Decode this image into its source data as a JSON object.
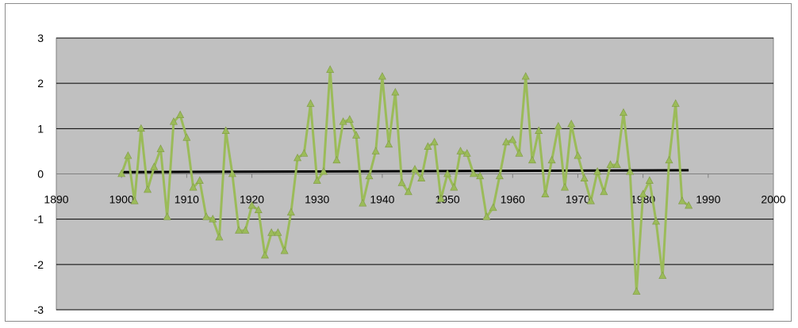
{
  "chart_data": {
    "type": "line",
    "title": "",
    "xlabel": "",
    "ylabel": "",
    "xlim": [
      1890,
      2000
    ],
    "ylim": [
      -3,
      3
    ],
    "x_ticks": [
      "1890",
      "1900",
      "1910",
      "1920",
      "1930",
      "1940",
      "1950",
      "1960",
      "1970",
      "1980",
      "1990",
      "2000"
    ],
    "y_ticks": [
      "3",
      "2",
      "1",
      "0",
      "-1",
      "-2",
      "-3"
    ],
    "grid": "horizontal",
    "legend": "none",
    "colors": {
      "plot_background": "#c0c0c0",
      "series_line": "#9bbb59",
      "trend_line": "#000000",
      "gridline": "#000000"
    },
    "series": [
      {
        "marker": "triangle",
        "x": [
          1900,
          1901,
          1902,
          1903,
          1904,
          1905,
          1906,
          1907,
          1908,
          1909,
          1910,
          1911,
          1912,
          1913,
          1914,
          1915,
          1916,
          1917,
          1918,
          1919,
          1920,
          1921,
          1922,
          1923,
          1924,
          1925,
          1926,
          1927,
          1928,
          1929,
          1930,
          1931,
          1932,
          1933,
          1934,
          1935,
          1936,
          1937,
          1938,
          1939,
          1940,
          1941,
          1942,
          1943,
          1944,
          1945,
          1946,
          1947,
          1948,
          1949,
          1950,
          1951,
          1952,
          1953,
          1954,
          1955,
          1956,
          1957,
          1958,
          1959,
          1960,
          1961,
          1962,
          1963,
          1964,
          1965,
          1966,
          1967,
          1968,
          1969,
          1970,
          1971,
          1972,
          1973,
          1974,
          1975,
          1976,
          1977,
          1978,
          1979,
          1980,
          1981,
          1982,
          1983,
          1984,
          1985,
          1986,
          1987
        ],
        "y": [
          0.0,
          0.4,
          -0.6,
          1.0,
          -0.35,
          0.15,
          0.55,
          -0.95,
          1.15,
          1.3,
          0.8,
          -0.3,
          -0.15,
          -0.95,
          -1.0,
          -1.4,
          0.95,
          0.0,
          -1.25,
          -1.25,
          -0.7,
          -0.8,
          -1.8,
          -1.3,
          -1.3,
          -1.7,
          -0.85,
          0.35,
          0.45,
          1.55,
          -0.15,
          0.05,
          2.3,
          0.3,
          1.15,
          1.2,
          0.85,
          -0.65,
          -0.05,
          0.5,
          2.15,
          0.65,
          1.8,
          -0.2,
          -0.4,
          0.1,
          -0.1,
          0.6,
          0.7,
          -0.55,
          0.0,
          -0.3,
          0.5,
          0.45,
          0.0,
          -0.05,
          -0.95,
          -0.75,
          -0.05,
          0.7,
          0.75,
          0.45,
          2.15,
          0.3,
          0.95,
          -0.45,
          0.3,
          1.05,
          -0.3,
          1.1,
          0.4,
          -0.1,
          -0.6,
          0.05,
          -0.4,
          0.2,
          0.2,
          1.35,
          0.05,
          -2.6,
          -0.45,
          -0.15,
          -1.05,
          -2.25,
          0.3,
          1.55,
          -0.6,
          -0.7
        ]
      },
      {
        "type": "trend",
        "x": [
          1900,
          1987
        ],
        "y": [
          0.04,
          0.08
        ]
      }
    ]
  }
}
